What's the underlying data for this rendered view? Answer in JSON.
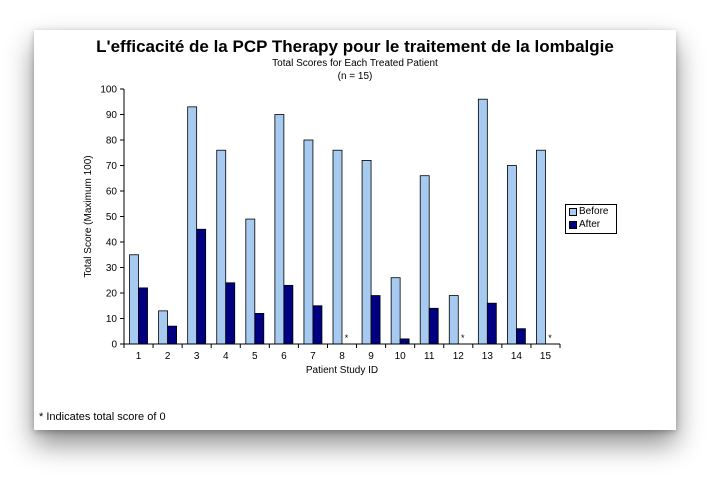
{
  "chart_data": {
    "type": "bar",
    "title": "L'efficacité de la PCP Therapy pour le traitement de la lombalgie",
    "subtitle": "Total Scores for Each Treated Patient",
    "subtitle2": "(n = 15)",
    "xlabel": "Patient Study ID",
    "ylabel": "Total Score (Maximum 100)",
    "ylim": [
      0,
      100
    ],
    "yticks": [
      0,
      10,
      20,
      30,
      40,
      50,
      60,
      70,
      80,
      90,
      100
    ],
    "categories": [
      "1",
      "2",
      "3",
      "4",
      "5",
      "6",
      "7",
      "8",
      "9",
      "10",
      "11",
      "12",
      "13",
      "14",
      "15"
    ],
    "series": [
      {
        "name": "Before",
        "color": "#a6caf0",
        "values": [
          35,
          13,
          93,
          76,
          49,
          90,
          80,
          76,
          72,
          26,
          66,
          19,
          96,
          70,
          76
        ]
      },
      {
        "name": "After",
        "color": "#000080",
        "values": [
          22,
          7,
          45,
          24,
          12,
          23,
          15,
          0,
          19,
          2,
          14,
          0,
          16,
          6,
          0
        ]
      }
    ],
    "zero_marker": "*",
    "legend_position": "right",
    "grid": false,
    "footnote": {
      "marker": "*",
      "text": "Indicates total score of 0"
    }
  }
}
